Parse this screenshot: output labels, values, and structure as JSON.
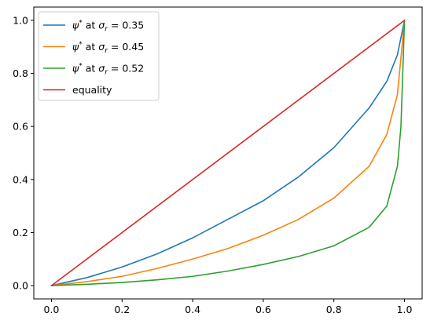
{
  "chart_data": {
    "type": "line",
    "title": "",
    "xlabel": "",
    "ylabel": "",
    "xlim": [
      -0.05,
      1.05
    ],
    "ylim": [
      -0.05,
      1.05
    ],
    "x_ticks": [
      "0.0",
      "0.2",
      "0.4",
      "0.6",
      "0.8",
      "1.0"
    ],
    "y_ticks": [
      "0.0",
      "0.2",
      "0.4",
      "0.6",
      "0.8",
      "1.0"
    ],
    "grid": false,
    "legend_position": "top-left",
    "series": [
      {
        "name": "ψ* at σr = 0.35",
        "legend": {
          "main": "ψ",
          "sup": "*",
          "mid": " at ",
          "sigma": "σ",
          "sub": "r",
          "tail": " = 0.35"
        },
        "color": "#1f77b4",
        "x": [
          0,
          0.1,
          0.2,
          0.3,
          0.4,
          0.5,
          0.6,
          0.7,
          0.8,
          0.9,
          0.95,
          0.98,
          1.0
        ],
        "y": [
          0,
          0.03,
          0.07,
          0.12,
          0.18,
          0.25,
          0.32,
          0.41,
          0.52,
          0.67,
          0.77,
          0.87,
          1.0
        ]
      },
      {
        "name": "ψ* at σr = 0.45",
        "legend": {
          "main": "ψ",
          "sup": "*",
          "mid": " at ",
          "sigma": "σ",
          "sub": "r",
          "tail": " = 0.45"
        },
        "color": "#ff7f0e",
        "x": [
          0,
          0.1,
          0.2,
          0.3,
          0.4,
          0.5,
          0.6,
          0.7,
          0.8,
          0.9,
          0.95,
          0.98,
          1.0
        ],
        "y": [
          0,
          0.015,
          0.035,
          0.065,
          0.1,
          0.14,
          0.19,
          0.25,
          0.33,
          0.45,
          0.57,
          0.72,
          1.0
        ]
      },
      {
        "name": "ψ* at σr = 0.52",
        "legend": {
          "main": "ψ",
          "sup": "*",
          "mid": " at ",
          "sigma": "σ",
          "sub": "r",
          "tail": " = 0.52"
        },
        "color": "#2ca02c",
        "x": [
          0,
          0.1,
          0.2,
          0.3,
          0.4,
          0.5,
          0.6,
          0.7,
          0.8,
          0.9,
          0.95,
          0.98,
          0.99,
          1.0
        ],
        "y": [
          0,
          0.005,
          0.012,
          0.022,
          0.035,
          0.055,
          0.08,
          0.11,
          0.15,
          0.22,
          0.3,
          0.45,
          0.6,
          1.0
        ]
      },
      {
        "name": "equality",
        "legend": {
          "main": "equality"
        },
        "color": "#d62728",
        "x": [
          0,
          1
        ],
        "y": [
          0,
          1
        ]
      }
    ]
  }
}
